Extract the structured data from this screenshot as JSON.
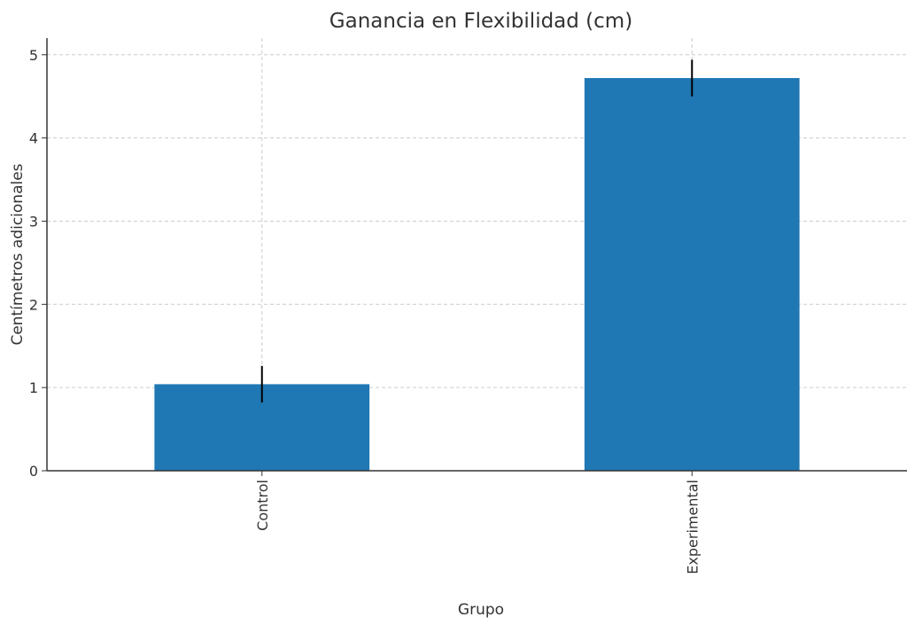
{
  "chart_data": {
    "type": "bar",
    "title": "Ganancia en Flexibilidad (cm)",
    "xlabel": "Grupo",
    "ylabel": "Centímetros adicionales",
    "categories": [
      "Control",
      "Experimental"
    ],
    "values": [
      1.04,
      4.72
    ],
    "errors": [
      0.22,
      0.22
    ],
    "ylim": [
      0,
      5.2
    ],
    "yticks": [
      "0",
      "1",
      "2",
      "3",
      "4",
      "5"
    ],
    "grid": true,
    "bar_color": "#1f77b4",
    "x_tick_rotation": "vertical"
  }
}
